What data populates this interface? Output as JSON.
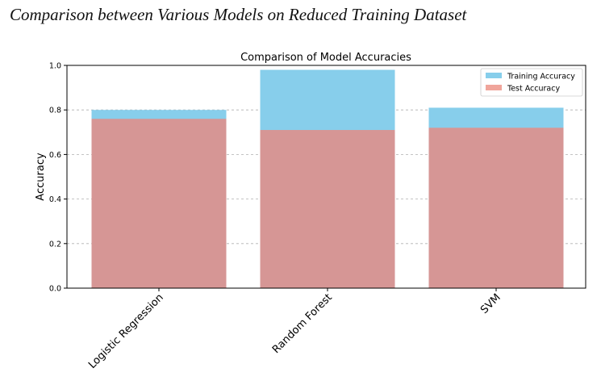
{
  "page": {
    "title": "Comparison between Various Models on Reduced Training Dataset"
  },
  "chart_data": {
    "type": "bar",
    "title": "Comparison of Model Accuracies",
    "xlabel": "",
    "ylabel": "Accuracy",
    "categories": [
      "Logistic Regression",
      "Random Forest",
      "SVM"
    ],
    "series": [
      {
        "name": "Training Accuracy",
        "values": [
          0.8,
          0.98,
          0.81
        ],
        "color": "#87ceeb"
      },
      {
        "name": "Test Accuracy",
        "values": [
          0.76,
          0.71,
          0.72
        ],
        "color": "#d69695"
      }
    ],
    "ylim": [
      0,
      1.0
    ],
    "yticks": [
      "0.0",
      "0.2",
      "0.4",
      "0.6",
      "0.8",
      "1.0"
    ],
    "grid": "y-dashed",
    "legend_position": "top-right",
    "bar_mode": "overlay"
  }
}
